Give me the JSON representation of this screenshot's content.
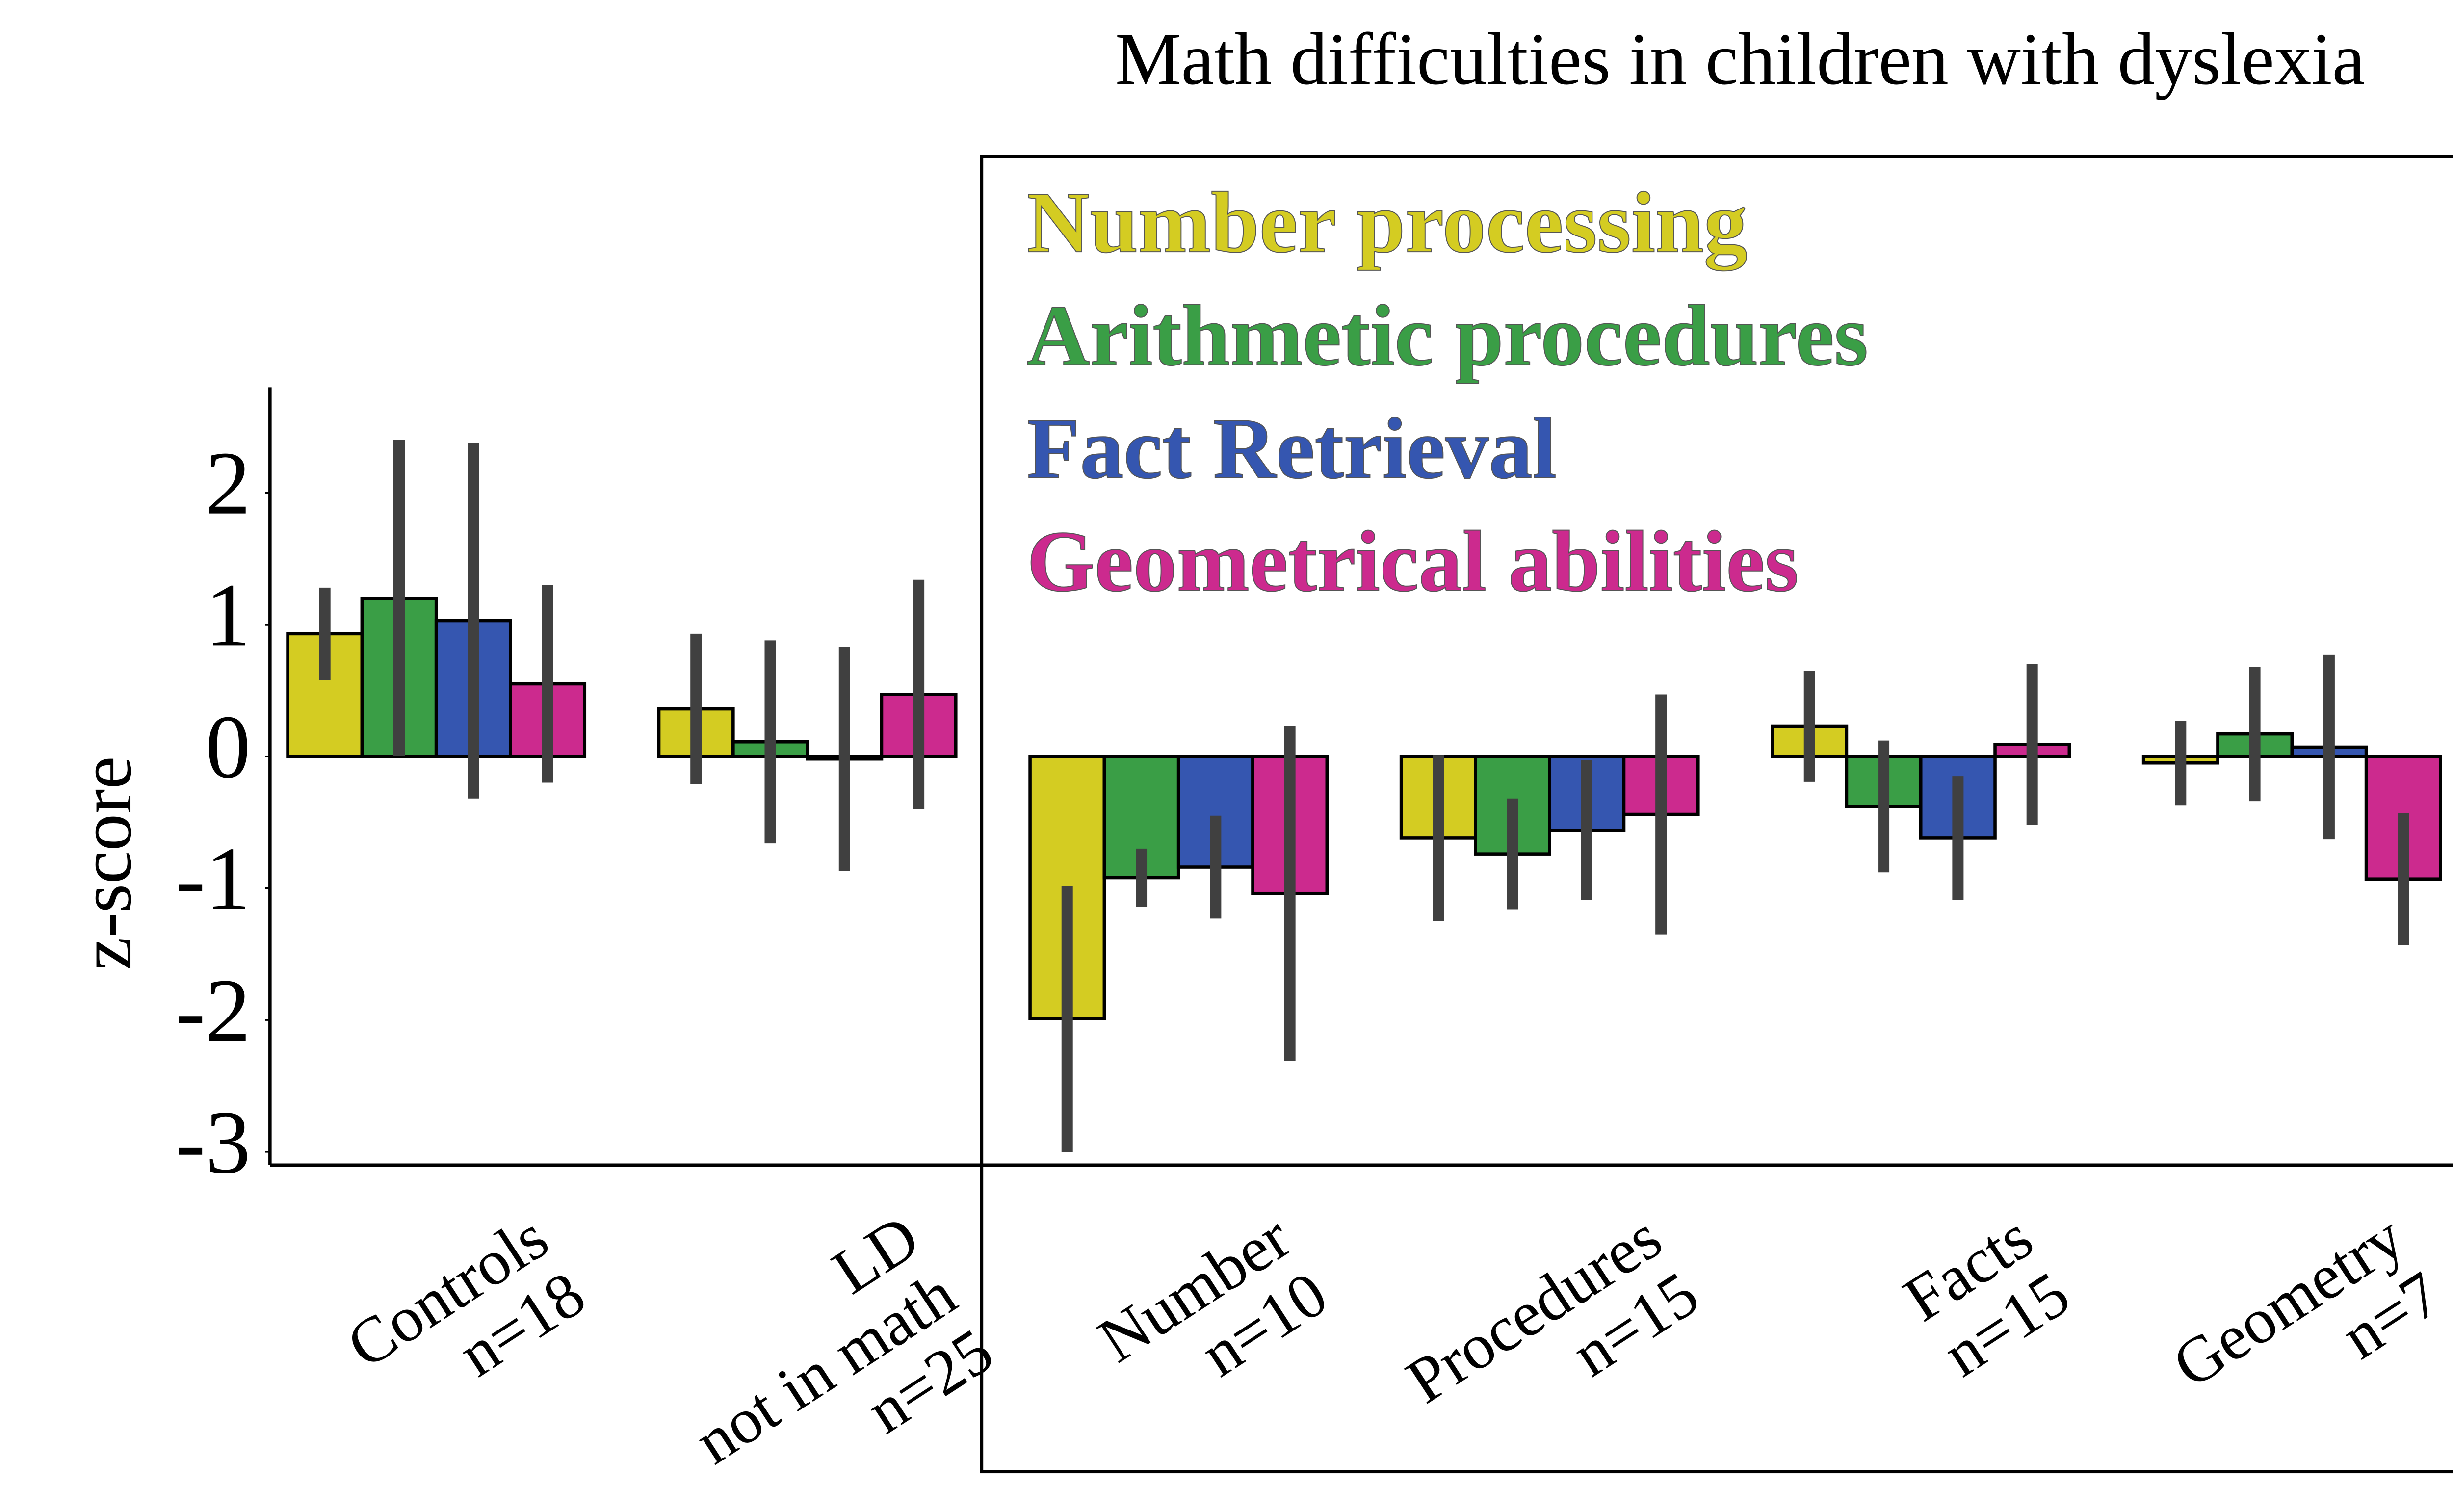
{
  "chart_data": {
    "type": "bar",
    "title": "Math difficulties in children with dyslexia",
    "ylabel": "z-score",
    "categories": [
      [
        "Controls",
        "n=18"
      ],
      [
        "LD",
        "not in math",
        "n=25"
      ],
      [
        "Number",
        "n=10"
      ],
      [
        "Procedures",
        "n=15"
      ],
      [
        "Facts",
        "n=15"
      ],
      [
        "Geometry",
        "n=7"
      ]
    ],
    "series": [
      {
        "name": "Number processing",
        "color": "#d4cc22",
        "values": [
          0.93,
          0.36,
          -1.99,
          -0.62,
          0.23,
          -0.05
        ],
        "errors": [
          0.35,
          0.57,
          1.01,
          0.63,
          0.42,
          0.32
        ]
      },
      {
        "name": "Arithmetic procedures",
        "color": "#3a9e46",
        "values": [
          1.2,
          0.11,
          -0.92,
          -0.74,
          -0.38,
          0.17
        ],
        "errors": [
          1.2,
          0.77,
          0.22,
          0.42,
          0.5,
          0.51
        ]
      },
      {
        "name": "Fact Retrieval",
        "color": "#3556b0",
        "values": [
          1.03,
          -0.02,
          -0.84,
          -0.56,
          -0.62,
          0.07
        ],
        "errors": [
          1.35,
          0.85,
          0.39,
          0.53,
          0.47,
          0.7
        ]
      },
      {
        "name": "Geometrical abilities",
        "color": "#cc2a8e",
        "values": [
          0.55,
          0.47,
          -1.04,
          -0.44,
          0.09,
          -0.93
        ],
        "errors": [
          0.75,
          0.87,
          1.27,
          0.91,
          0.61,
          0.5
        ]
      }
    ],
    "ylim": [
      -3.1,
      2.8
    ],
    "yticks": [
      -3,
      -2,
      -1,
      0,
      1,
      2
    ]
  }
}
